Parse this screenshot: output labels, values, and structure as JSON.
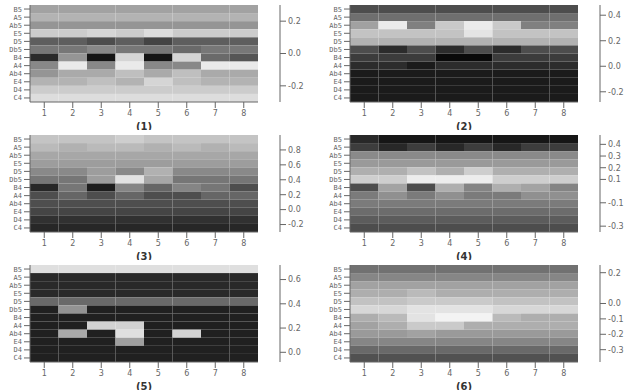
{
  "chart_data": [
    {
      "type": "heatmap",
      "x_label": "(1)",
      "categories": [
        "B5",
        "A5",
        "Ab5",
        "E5",
        "D5",
        "Db5",
        "B4",
        "A4",
        "Ab4",
        "E4",
        "D4",
        "C4"
      ],
      "xticks": [
        1,
        2,
        3,
        4,
        5,
        6,
        7,
        8
      ],
      "xlim": [
        0.5,
        8.5
      ],
      "color_range": [
        -0.3,
        0.3
      ],
      "color_ticks": [
        0.2,
        {
          "value": 0.0,
          "label": "0.0"
        },
        -0.2
      ],
      "values": [
        [
          0.08,
          0.08,
          0.08,
          0.08,
          0.08,
          0.08,
          0.08,
          0.08
        ],
        [
          0.12,
          0.12,
          0.12,
          0.12,
          0.12,
          0.12,
          0.12,
          0.12
        ],
        [
          0.05,
          0.05,
          0.05,
          0.05,
          0.05,
          0.05,
          0.05,
          0.05
        ],
        [
          0.18,
          0.18,
          0.2,
          0.18,
          0.22,
          0.18,
          0.18,
          0.18
        ],
        [
          -0.08,
          -0.08,
          -0.12,
          -0.08,
          -0.14,
          -0.08,
          -0.08,
          -0.08
        ],
        [
          -0.02,
          -0.02,
          0.02,
          -0.02,
          -0.02,
          -0.05,
          -0.02,
          -0.02
        ],
        [
          -0.2,
          0.05,
          -0.25,
          0.2,
          -0.25,
          0.2,
          -0.05,
          -0.1
        ],
        [
          0.02,
          0.25,
          0.02,
          0.25,
          0.02,
          0.02,
          0.25,
          0.25
        ],
        [
          0.05,
          0.1,
          0.1,
          0.15,
          0.1,
          0.15,
          0.1,
          0.1
        ],
        [
          0.12,
          0.12,
          0.15,
          0.12,
          0.2,
          0.15,
          0.12,
          0.12
        ],
        [
          0.18,
          0.18,
          0.18,
          0.18,
          0.18,
          0.18,
          0.18,
          0.18
        ],
        [
          0.22,
          0.22,
          0.22,
          0.22,
          0.22,
          0.22,
          0.22,
          0.22
        ]
      ]
    },
    {
      "type": "heatmap",
      "x_label": "(2)",
      "categories": [
        "B5",
        "A5",
        "Ab5",
        "E5",
        "D5",
        "Db5",
        "B4",
        "A4",
        "Ab4",
        "E4",
        "D4",
        "C4"
      ],
      "xticks": [
        1,
        2,
        3,
        4,
        5,
        6,
        7,
        8
      ],
      "xlim": [
        0.5,
        8.5
      ],
      "color_range": [
        -0.28,
        0.48
      ],
      "color_ticks": [
        0.4,
        0.2,
        {
          "value": 0.0,
          "label": "0.0"
        },
        -0.2
      ],
      "values": [
        [
          -0.05,
          -0.05,
          -0.05,
          -0.05,
          -0.05,
          -0.05,
          -0.05,
          -0.05
        ],
        [
          0.05,
          0.05,
          0.05,
          0.05,
          0.05,
          0.05,
          0.05,
          0.05
        ],
        [
          0.2,
          0.42,
          0.1,
          0.32,
          0.42,
          0.32,
          0.1,
          0.1
        ],
        [
          0.3,
          0.3,
          0.3,
          0.3,
          0.4,
          0.3,
          0.3,
          0.3
        ],
        [
          0.25,
          0.25,
          0.25,
          0.25,
          0.25,
          0.25,
          0.25,
          0.25
        ],
        [
          -0.05,
          -0.15,
          -0.05,
          -0.15,
          -0.05,
          -0.15,
          -0.05,
          -0.05
        ],
        [
          -0.1,
          -0.1,
          -0.1,
          -0.25,
          -0.25,
          -0.1,
          -0.1,
          -0.1
        ],
        [
          -0.15,
          -0.15,
          -0.2,
          -0.15,
          -0.15,
          -0.15,
          -0.15,
          -0.15
        ],
        [
          -0.2,
          -0.2,
          -0.2,
          -0.2,
          -0.2,
          -0.2,
          -0.2,
          -0.2
        ],
        [
          -0.2,
          -0.2,
          -0.2,
          -0.2,
          -0.2,
          -0.2,
          -0.2,
          -0.2
        ],
        [
          -0.2,
          -0.2,
          -0.2,
          -0.2,
          -0.2,
          -0.2,
          -0.2,
          -0.2
        ],
        [
          -0.2,
          -0.2,
          -0.2,
          -0.2,
          -0.2,
          -0.2,
          -0.2,
          -0.2
        ]
      ]
    },
    {
      "type": "heatmap",
      "x_label": "(3)",
      "categories": [
        "B5",
        "A5",
        "Ab5",
        "E5",
        "D5",
        "Db5",
        "B4",
        "A4",
        "Ab4",
        "E4",
        "D4",
        "C4"
      ],
      "xticks": [
        1,
        2,
        3,
        4,
        5,
        6,
        7,
        8
      ],
      "xlim": [
        0.5,
        8.5
      ],
      "color_range": [
        -0.3,
        1.0
      ],
      "color_ticks": [
        0.8,
        0.6,
        0.4,
        0.2,
        {
          "value": 0.0,
          "label": "0.0"
        },
        -0.2
      ],
      "values": [
        [
          0.7,
          0.7,
          0.7,
          0.75,
          0.7,
          0.7,
          0.7,
          0.7
        ],
        [
          0.65,
          0.6,
          0.65,
          0.65,
          0.6,
          0.65,
          0.6,
          0.65
        ],
        [
          0.55,
          0.55,
          0.55,
          0.55,
          0.55,
          0.55,
          0.55,
          0.55
        ],
        [
          0.5,
          0.5,
          0.5,
          0.5,
          0.5,
          0.5,
          0.5,
          0.5
        ],
        [
          0.4,
          0.4,
          0.5,
          0.4,
          0.6,
          0.4,
          0.4,
          0.4
        ],
        [
          0.3,
          0.3,
          0.5,
          0.85,
          0.55,
          0.3,
          0.3,
          0.3
        ],
        [
          -0.1,
          0.3,
          -0.15,
          0.38,
          0.22,
          0.38,
          0.3,
          0.1
        ],
        [
          0.1,
          0.22,
          0.1,
          0.22,
          0.1,
          0.1,
          0.22,
          0.22
        ],
        [
          0.1,
          0.1,
          0.1,
          0.1,
          0.1,
          0.1,
          0.1,
          0.1
        ],
        [
          0.05,
          0.05,
          0.05,
          0.05,
          0.05,
          0.05,
          0.05,
          0.05
        ],
        [
          -0.05,
          -0.05,
          -0.05,
          -0.05,
          -0.05,
          -0.05,
          -0.05,
          -0.05
        ],
        [
          -0.1,
          -0.1,
          -0.1,
          -0.1,
          -0.1,
          -0.1,
          -0.1,
          -0.1
        ]
      ]
    },
    {
      "type": "heatmap",
      "x_label": "(4)",
      "categories": [
        "B5",
        "A5",
        "Ab5",
        "E5",
        "D5",
        "Db5",
        "B4",
        "A4",
        "Ab4",
        "E4",
        "D4",
        "C4"
      ],
      "xticks": [
        1,
        2,
        3,
        4,
        5,
        6,
        7,
        8
      ],
      "xlim": [
        0.5,
        8.5
      ],
      "color_range": [
        -0.35,
        0.48
      ],
      "color_ticks": [
        0.4,
        0.3,
        0.2,
        0.1,
        -0.1,
        -0.3
      ],
      "values": [
        [
          -0.22,
          -0.28,
          -0.28,
          -0.28,
          -0.28,
          -0.28,
          -0.28,
          -0.28
        ],
        [
          -0.15,
          -0.22,
          -0.15,
          -0.22,
          -0.15,
          -0.22,
          -0.15,
          -0.15
        ],
        [
          0.1,
          0.1,
          0.1,
          0.1,
          0.1,
          0.1,
          0.1,
          0.1
        ],
        [
          0.15,
          0.15,
          0.15,
          0.15,
          0.15,
          0.15,
          0.15,
          0.15
        ],
        [
          0.22,
          0.22,
          0.28,
          0.22,
          0.32,
          0.22,
          0.22,
          0.22
        ],
        [
          0.32,
          0.32,
          0.42,
          0.42,
          0.42,
          0.32,
          0.32,
          0.32
        ],
        [
          -0.1,
          0.18,
          -0.1,
          0.22,
          0.08,
          0.22,
          0.18,
          0.08
        ],
        [
          0.05,
          0.12,
          0.05,
          0.12,
          0.05,
          0.05,
          0.12,
          0.12
        ],
        [
          0.05,
          0.05,
          0.05,
          0.05,
          0.05,
          0.05,
          0.05,
          0.05
        ],
        [
          0.0,
          0.0,
          0.0,
          0.0,
          0.0,
          0.0,
          0.0,
          0.0
        ],
        [
          -0.05,
          -0.05,
          -0.05,
          -0.05,
          -0.05,
          -0.05,
          -0.05,
          -0.05
        ],
        [
          -0.1,
          -0.1,
          -0.1,
          -0.1,
          -0.1,
          -0.1,
          -0.1,
          -0.1
        ]
      ]
    },
    {
      "type": "heatmap",
      "x_label": "(5)",
      "categories": [
        "B5",
        "A5",
        "Ab5",
        "E5",
        "D5",
        "Db5",
        "B4",
        "A4",
        "Ab4",
        "E4",
        "D4",
        "C4"
      ],
      "xticks": [
        1,
        2,
        3,
        4,
        5,
        6,
        7,
        8
      ],
      "xlim": [
        0.5,
        8.5
      ],
      "color_range": [
        -0.08,
        0.72
      ],
      "color_ticks": [
        0.6,
        0.4,
        0.2,
        {
          "value": 0.0,
          "label": "0.0"
        }
      ],
      "values": [
        [
          0.62,
          0.62,
          0.62,
          0.62,
          0.62,
          0.62,
          0.62,
          0.62
        ],
        [
          0.05,
          0.05,
          0.05,
          0.05,
          0.05,
          0.05,
          0.05,
          0.05
        ],
        [
          0.05,
          0.05,
          0.05,
          0.05,
          0.05,
          0.05,
          0.05,
          0.05
        ],
        [
          0.05,
          0.05,
          0.05,
          0.05,
          0.05,
          0.05,
          0.05,
          0.05
        ],
        [
          0.25,
          0.25,
          0.25,
          0.25,
          0.25,
          0.25,
          0.25,
          0.25
        ],
        [
          0.02,
          0.38,
          0.02,
          0.02,
          0.02,
          0.02,
          0.02,
          0.02
        ],
        [
          0.02,
          0.02,
          0.02,
          0.02,
          0.02,
          0.02,
          0.02,
          0.02
        ],
        [
          0.02,
          0.02,
          0.58,
          0.58,
          0.02,
          0.02,
          0.02,
          0.02
        ],
        [
          0.02,
          0.45,
          0.02,
          0.62,
          0.02,
          0.58,
          0.02,
          0.02
        ],
        [
          0.02,
          0.02,
          0.02,
          0.42,
          0.02,
          0.02,
          0.02,
          0.02
        ],
        [
          0.02,
          0.02,
          0.02,
          0.02,
          0.02,
          0.02,
          0.02,
          0.02
        ],
        [
          0.02,
          0.02,
          0.02,
          0.02,
          0.02,
          0.02,
          0.02,
          0.02
        ]
      ]
    },
    {
      "type": "heatmap",
      "x_label": "(6)",
      "categories": [
        "B5",
        "A5",
        "Ab5",
        "E5",
        "D5",
        "Db5",
        "B4",
        "A4",
        "Ab4",
        "E4",
        "D4",
        "C4"
      ],
      "xticks": [
        1,
        2,
        3,
        4,
        5,
        6,
        7,
        8
      ],
      "xlim": [
        0.5,
        8.5
      ],
      "color_range": [
        -0.38,
        0.25
      ],
      "color_ticks": [
        0.2,
        {
          "value": 0.0,
          "label": "0.0"
        },
        -0.1,
        -0.2,
        -0.3
      ],
      "values": [
        [
          -0.1,
          -0.1,
          -0.1,
          -0.1,
          -0.1,
          -0.1,
          -0.1,
          -0.1
        ],
        [
          -0.05,
          -0.05,
          -0.05,
          -0.05,
          -0.05,
          -0.05,
          -0.05,
          -0.05
        ],
        [
          0.02,
          0.02,
          0.02,
          0.02,
          0.02,
          0.02,
          0.02,
          0.02
        ],
        [
          0.05,
          0.05,
          0.08,
          0.05,
          0.05,
          0.05,
          0.05,
          0.05
        ],
        [
          0.1,
          0.1,
          0.12,
          0.12,
          0.12,
          0.1,
          0.1,
          0.1
        ],
        [
          0.15,
          0.15,
          0.18,
          0.18,
          0.18,
          0.15,
          0.15,
          0.15
        ],
        [
          0.05,
          0.08,
          0.18,
          0.22,
          0.22,
          0.08,
          0.05,
          0.05
        ],
        [
          0.02,
          0.05,
          0.12,
          0.12,
          0.05,
          0.05,
          0.05,
          0.05
        ],
        [
          0.0,
          0.0,
          0.02,
          0.0,
          0.0,
          0.0,
          0.0,
          0.0
        ],
        [
          -0.05,
          -0.05,
          -0.05,
          -0.05,
          -0.05,
          -0.05,
          -0.05,
          -0.05
        ],
        [
          -0.12,
          -0.12,
          -0.12,
          -0.12,
          -0.12,
          -0.12,
          -0.12,
          -0.12
        ],
        [
          -0.18,
          -0.18,
          -0.18,
          -0.18,
          -0.18,
          -0.18,
          -0.18,
          -0.18
        ]
      ]
    }
  ]
}
